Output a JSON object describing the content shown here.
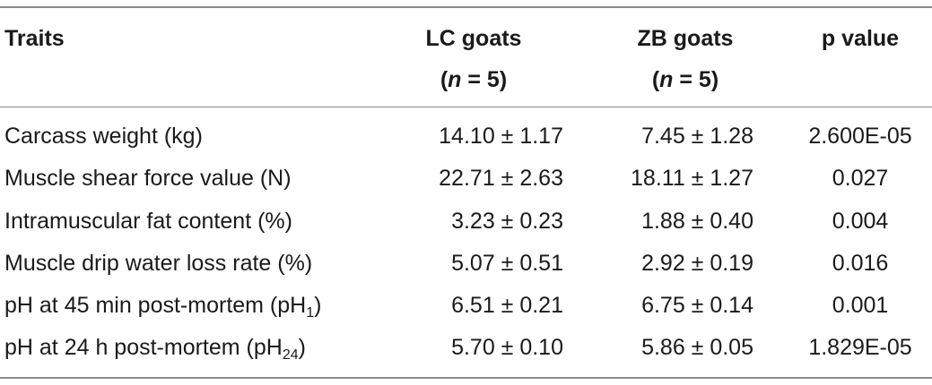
{
  "table": {
    "headers": {
      "traits": "Traits",
      "lc_line1": "LC goats",
      "lc_n_open": "(",
      "lc_n_var": "n",
      "lc_n_rest": " = 5)",
      "zb_line1": "ZB goats",
      "zb_n_open": "(",
      "zb_n_var": "n",
      "zb_n_rest": " = 5)",
      "pvalue": "p value"
    },
    "rows": [
      {
        "trait": "Carcass weight (kg)",
        "trait_sub": "",
        "trait_end": "",
        "lc": "14.10 ± 1.17",
        "zb": "7.45 ± 1.28",
        "p": "2.600E-05"
      },
      {
        "trait": "Muscle shear force value (N)",
        "trait_sub": "",
        "trait_end": "",
        "lc": "22.71 ± 2.63",
        "zb": "18.11 ± 1.27",
        "p": "0.027"
      },
      {
        "trait": "Intramuscular fat content (%)",
        "trait_sub": "",
        "trait_end": "",
        "lc": "3.23 ± 0.23",
        "zb": "1.88 ± 0.40",
        "p": "0.004"
      },
      {
        "trait": "Muscle drip water loss rate (%)",
        "trait_sub": "",
        "trait_end": "",
        "lc": "5.07 ± 0.51",
        "zb": "2.92 ± 0.19",
        "p": "0.016"
      },
      {
        "trait": "pH at 45 min post-mortem (pH",
        "trait_sub": "1",
        "trait_end": ")",
        "lc": "6.51 ± 0.21",
        "zb": "6.75 ± 0.14",
        "p": "0.001"
      },
      {
        "trait": "pH at 24 h post-mortem (pH",
        "trait_sub": "24",
        "trait_end": ")",
        "lc": "5.70 ± 0.10",
        "zb": "5.86 ± 0.05",
        "p": "1.829E-05"
      }
    ]
  }
}
